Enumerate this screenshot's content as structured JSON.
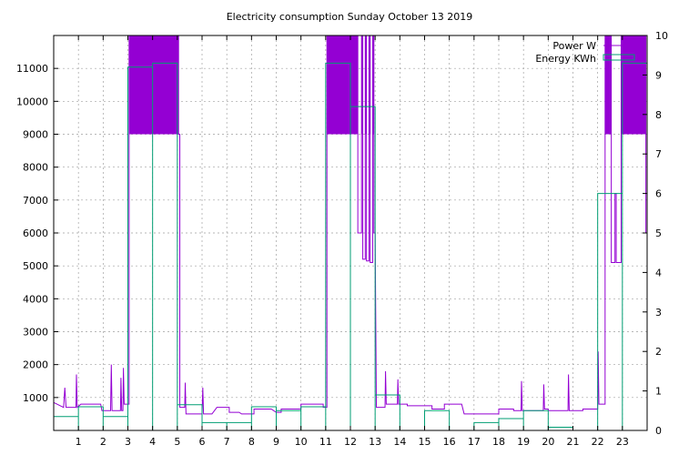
{
  "chart_data": {
    "type": "line",
    "title": "Electricity consumption Sunday October 13 2019",
    "xlim": [
      0,
      24
    ],
    "ylim": [
      0,
      12000
    ],
    "y2lim": [
      0,
      10
    ],
    "x_ticks": [
      1,
      2,
      3,
      4,
      5,
      6,
      7,
      8,
      9,
      10,
      11,
      12,
      13,
      14,
      15,
      16,
      17,
      18,
      19,
      20,
      21,
      22,
      23
    ],
    "y_ticks": [
      1000,
      2000,
      3000,
      4000,
      5000,
      6000,
      7000,
      8000,
      9000,
      10000,
      11000
    ],
    "y2_ticks": [
      0,
      1,
      2,
      3,
      4,
      5,
      6,
      7,
      8,
      9,
      10
    ],
    "grid": true,
    "legend_position": "top-right",
    "colors": {
      "power": "#9400d3",
      "energy": "#009e73"
    },
    "series": [
      {
        "name": "Power W",
        "axis": "y",
        "style": "step",
        "points": [
          [
            0,
            850
          ],
          [
            0.4,
            700
          ],
          [
            0.45,
            1300
          ],
          [
            0.5,
            700
          ],
          [
            0.9,
            700
          ],
          [
            0.92,
            1700
          ],
          [
            0.95,
            700
          ],
          [
            1.1,
            800
          ],
          [
            1.9,
            800
          ],
          [
            1.95,
            600
          ],
          [
            2.3,
            600
          ],
          [
            2.33,
            2000
          ],
          [
            2.36,
            600
          ],
          [
            2.7,
            600
          ],
          [
            2.72,
            1600
          ],
          [
            2.75,
            600
          ],
          [
            2.8,
            600
          ],
          [
            2.82,
            1900
          ],
          [
            2.85,
            800
          ],
          [
            3.05,
            800
          ],
          [
            3.05,
            12000
          ],
          [
            5.05,
            12000
          ],
          [
            5.05,
            9000
          ],
          [
            5.1,
            9000
          ],
          [
            5.1,
            700
          ],
          [
            5.3,
            700
          ],
          [
            5.32,
            1450
          ],
          [
            5.35,
            500
          ],
          [
            6.0,
            500
          ],
          [
            6.03,
            1300
          ],
          [
            6.06,
            500
          ],
          [
            6.4,
            500
          ],
          [
            6.5,
            600
          ],
          [
            6.6,
            700
          ],
          [
            7.1,
            700
          ],
          [
            7.1,
            550
          ],
          [
            7.5,
            550
          ],
          [
            7.6,
            500
          ],
          [
            8.1,
            500
          ],
          [
            8.1,
            650
          ],
          [
            8.8,
            650
          ],
          [
            8.9,
            600
          ],
          [
            9.0,
            550
          ],
          [
            9.2,
            550
          ],
          [
            9.2,
            650
          ],
          [
            10.0,
            650
          ],
          [
            10.0,
            800
          ],
          [
            10.9,
            800
          ],
          [
            10.9,
            700
          ],
          [
            11.05,
            700
          ],
          [
            11.05,
            12000
          ],
          [
            12.3,
            12000
          ],
          [
            12.3,
            6000
          ],
          [
            12.45,
            6000
          ],
          [
            12.45,
            12000
          ],
          [
            12.5,
            12000
          ],
          [
            12.5,
            5200
          ],
          [
            12.6,
            5200
          ],
          [
            12.6,
            12000
          ],
          [
            12.65,
            12000
          ],
          [
            12.65,
            5150
          ],
          [
            12.75,
            5150
          ],
          [
            12.75,
            12000
          ],
          [
            12.8,
            12000
          ],
          [
            12.8,
            5100
          ],
          [
            12.9,
            5100
          ],
          [
            12.9,
            12000
          ],
          [
            12.95,
            12000
          ],
          [
            12.95,
            6000
          ],
          [
            13.0,
            6000
          ],
          [
            13.05,
            700
          ],
          [
            13.4,
            700
          ],
          [
            13.42,
            1800
          ],
          [
            13.45,
            800
          ],
          [
            13.9,
            800
          ],
          [
            13.92,
            1550
          ],
          [
            13.95,
            800
          ],
          [
            14.3,
            800
          ],
          [
            14.3,
            750
          ],
          [
            15.3,
            750
          ],
          [
            15.3,
            650
          ],
          [
            15.8,
            650
          ],
          [
            15.8,
            800
          ],
          [
            16.5,
            800
          ],
          [
            16.6,
            500
          ],
          [
            18.0,
            500
          ],
          [
            18.0,
            650
          ],
          [
            18.6,
            650
          ],
          [
            18.6,
            600
          ],
          [
            18.9,
            600
          ],
          [
            18.92,
            1500
          ],
          [
            18.95,
            600
          ],
          [
            19.8,
            600
          ],
          [
            19.82,
            1400
          ],
          [
            19.85,
            650
          ],
          [
            20.0,
            650
          ],
          [
            20.0,
            600
          ],
          [
            20.8,
            600
          ],
          [
            20.82,
            1700
          ],
          [
            20.85,
            600
          ],
          [
            21.4,
            600
          ],
          [
            21.4,
            650
          ],
          [
            22.0,
            650
          ],
          [
            22.02,
            2400
          ],
          [
            22.05,
            800
          ],
          [
            22.3,
            800
          ],
          [
            22.3,
            12000
          ],
          [
            22.55,
            12000
          ],
          [
            22.55,
            5100
          ],
          [
            22.7,
            5100
          ],
          [
            22.7,
            7200
          ],
          [
            22.75,
            7200
          ],
          [
            22.75,
            5100
          ],
          [
            22.95,
            5100
          ],
          [
            22.95,
            12000
          ],
          [
            23.95,
            12000
          ],
          [
            23.95,
            6000
          ],
          [
            24.0,
            6000
          ]
        ]
      },
      {
        "name": "Energy KWh",
        "axis": "y2",
        "style": "histeps",
        "points": [
          [
            0.0,
            0.35
          ],
          [
            1.0,
            0.6
          ],
          [
            2.0,
            0.35
          ],
          [
            3.0,
            9.2
          ],
          [
            4.0,
            9.3
          ],
          [
            5.0,
            0.65
          ],
          [
            6.0,
            0.2
          ],
          [
            7.0,
            0.2
          ],
          [
            8.0,
            0.6
          ],
          [
            9.0,
            0.5
          ],
          [
            10.0,
            0.6
          ],
          [
            11.0,
            9.3
          ],
          [
            12.0,
            8.2
          ],
          [
            13.0,
            0.9
          ],
          [
            14.0,
            0.0
          ],
          [
            15.0,
            0.5
          ],
          [
            16.0,
            0.0
          ],
          [
            17.0,
            0.2
          ],
          [
            18.0,
            0.3
          ],
          [
            19.0,
            0.5
          ],
          [
            20.0,
            0.08
          ],
          [
            21.0,
            0.0
          ],
          [
            22.0,
            6.0
          ],
          [
            23.0,
            9.3
          ],
          [
            24.0,
            0.0
          ]
        ]
      }
    ]
  }
}
